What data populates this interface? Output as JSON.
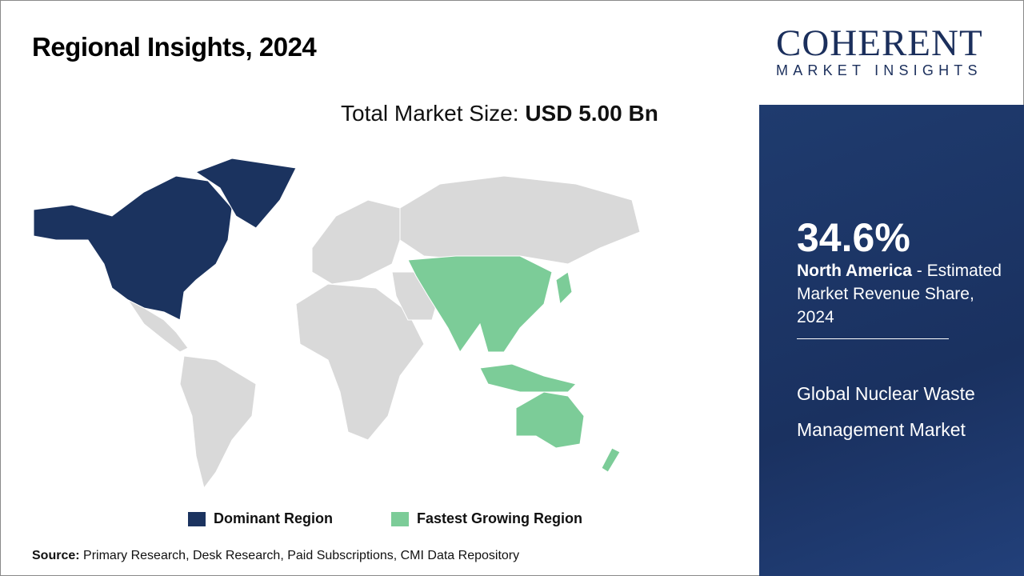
{
  "title": "Regional Insights, 2024",
  "total_market": {
    "label": "Total Market Size:",
    "value": "USD 5.00 Bn"
  },
  "legend": [
    {
      "label": "Dominant Region",
      "color": "#1b335f"
    },
    {
      "label": "Fastest Growing Region",
      "color": "#7ccc98"
    }
  ],
  "map": {
    "dominant_region": "North America",
    "fastest_growing_region": "Asia Pacific",
    "other_color": "#d9d9d9"
  },
  "source": {
    "label": "Source:",
    "text": "Primary Research, Desk Research, Paid Subscriptions, CMI Data Repository"
  },
  "logo": {
    "main": "COHERENT",
    "sub": "MARKET INSIGHTS"
  },
  "highlight": {
    "percent": "34.6%",
    "region": "North America",
    "description": " - Estimated Market Revenue Share, 2024"
  },
  "market_name": "Global Nuclear Waste Management Market"
}
